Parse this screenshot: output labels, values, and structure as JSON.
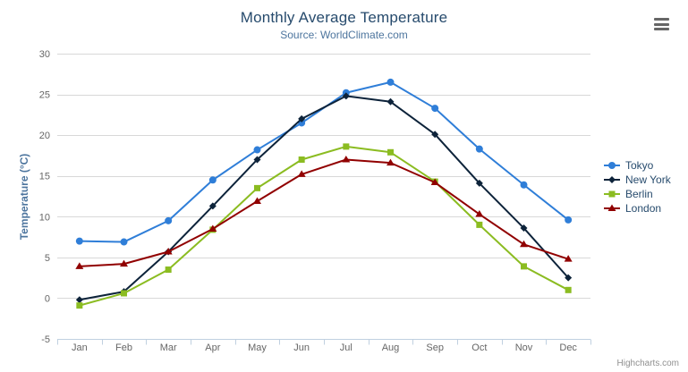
{
  "header": {
    "title": "Monthly Average Temperature",
    "subtitle": "Source: WorldClimate.com"
  },
  "credits": {
    "label": "Highcharts.com"
  },
  "colors": {
    "title": "#274b6d",
    "subtitle": "#4d759e",
    "axis_title": "#4d759e",
    "axis_labels": "#666666",
    "grid_line": "#d8d8d8",
    "axis_line": "#c0d0e0",
    "legend_text": "#274b6d",
    "menu_icon": "#666666",
    "credits_text": "#909090"
  },
  "chart_data": {
    "type": "line",
    "title": "Monthly Average Temperature",
    "subtitle": "Source: WorldClimate.com",
    "xlabel": "",
    "ylabel": "Temperature (°C)",
    "categories": [
      "Jan",
      "Feb",
      "Mar",
      "Apr",
      "May",
      "Jun",
      "Jul",
      "Aug",
      "Sep",
      "Oct",
      "Nov",
      "Dec"
    ],
    "series": [
      {
        "name": "Tokyo",
        "color": "#2f7ed8",
        "marker": "circle",
        "values": [
          7.0,
          6.9,
          9.5,
          14.5,
          18.2,
          21.5,
          25.2,
          26.5,
          23.3,
          18.3,
          13.9,
          9.6
        ]
      },
      {
        "name": "New York",
        "color": "#0d233a",
        "marker": "diamond",
        "values": [
          -0.2,
          0.8,
          5.7,
          11.3,
          17.0,
          22.0,
          24.8,
          24.1,
          20.1,
          14.1,
          8.6,
          2.5
        ]
      },
      {
        "name": "Berlin",
        "color": "#8bbc21",
        "marker": "square",
        "values": [
          -0.9,
          0.6,
          3.5,
          8.4,
          13.5,
          17.0,
          18.6,
          17.9,
          14.3,
          9.0,
          3.9,
          1.0
        ]
      },
      {
        "name": "London",
        "color": "#910000",
        "marker": "triangle",
        "values": [
          3.9,
          4.2,
          5.7,
          8.5,
          11.9,
          15.2,
          17.0,
          16.6,
          14.2,
          10.3,
          6.6,
          4.8
        ]
      }
    ],
    "ylim": [
      -5,
      30
    ],
    "ytick_step": 5,
    "grid": true,
    "legend_position": "right"
  }
}
